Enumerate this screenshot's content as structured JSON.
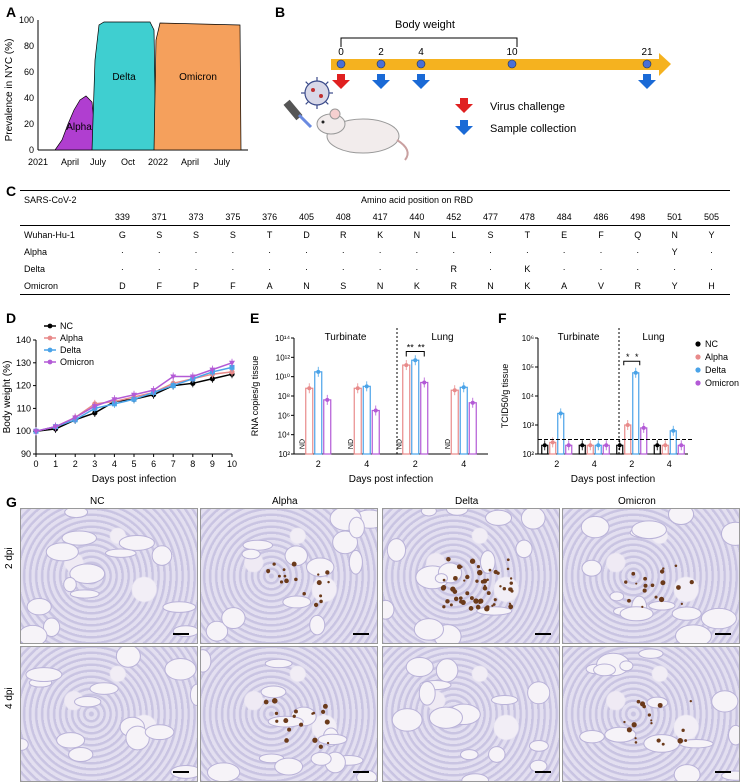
{
  "panel_labels": {
    "a": "A",
    "b": "B",
    "c": "C",
    "d": "D",
    "e": "E",
    "f": "F",
    "g": "G"
  },
  "colors": {
    "nc": "#000000",
    "alpha": "#e88a8a",
    "delta": "#4aa3e8",
    "omicron": "#b35ad6",
    "timeline": "#f5b21f",
    "alpha_area": "#b03ed0",
    "delta_area": "#3fcfd0",
    "omicron_area": "#f5a05c",
    "challenge": "#e02020",
    "sample": "#1a6ad6"
  },
  "panel_a": {
    "ylabel": "Prevalence in NYC (%)",
    "yticks": [
      "0",
      "20",
      "40",
      "60",
      "80",
      "100"
    ],
    "xticks": [
      "2021",
      "April",
      "July",
      "Oct",
      "2022",
      "April",
      "July"
    ],
    "areas": [
      "Alpha",
      "Delta",
      "Omicron"
    ]
  },
  "panel_b": {
    "title": "Body weight",
    "days": [
      "0",
      "2",
      "4",
      "10",
      "21"
    ],
    "legend": [
      "Virus challenge",
      "Sample collection"
    ]
  },
  "panel_c": {
    "header_left": "SARS-CoV-2",
    "header_title": "Amino acid position on RBD",
    "positions": [
      "339",
      "371",
      "373",
      "375",
      "376",
      "405",
      "408",
      "417",
      "440",
      "452",
      "477",
      "478",
      "484",
      "486",
      "498",
      "501",
      "505"
    ],
    "rows": [
      {
        "name": "Wuhan-Hu-1",
        "cells": [
          "G",
          "S",
          "S",
          "S",
          "T",
          "D",
          "R",
          "K",
          "N",
          "L",
          "S",
          "T",
          "E",
          "F",
          "Q",
          "N",
          "Y"
        ]
      },
      {
        "name": "Alpha",
        "cells": [
          "·",
          "·",
          "·",
          "·",
          "·",
          "·",
          "·",
          "·",
          "·",
          "·",
          "·",
          "·",
          "·",
          "·",
          "·",
          "Y",
          "·"
        ]
      },
      {
        "name": "Delta",
        "cells": [
          "·",
          "·",
          "·",
          "·",
          "·",
          "·",
          "·",
          "·",
          "·",
          "R",
          "·",
          "K",
          "·",
          "·",
          "·",
          "·",
          "·"
        ]
      },
      {
        "name": "Omicron",
        "cells": [
          "D",
          "F",
          "P",
          "F",
          "A",
          "N",
          "S",
          "N",
          "K",
          "R",
          "N",
          "K",
          "A",
          "V",
          "R",
          "Y",
          "H"
        ]
      }
    ]
  },
  "chart_data": [
    {
      "type": "line",
      "title": "",
      "xlabel": "Days post infection",
      "ylabel": "Body weight (%)",
      "x": [
        0,
        1,
        2,
        3,
        4,
        5,
        6,
        7,
        8,
        9,
        10
      ],
      "ylim": [
        90,
        140
      ],
      "yticks": [
        "90",
        "100",
        "110",
        "120",
        "130",
        "140"
      ],
      "xticks": [
        "0",
        "1",
        "2",
        "3",
        "4",
        "5",
        "6",
        "7",
        "8",
        "9",
        "10"
      ],
      "series": [
        {
          "name": "NC",
          "values": [
            100,
            101,
            105,
            108,
            113,
            114,
            116,
            120,
            121,
            123,
            125
          ]
        },
        {
          "name": "Alpha",
          "values": [
            100,
            102,
            106,
            112,
            113,
            115,
            117,
            121,
            123,
            125,
            126
          ]
        },
        {
          "name": "Delta",
          "values": [
            100,
            102,
            105,
            110,
            112,
            114,
            117,
            120,
            123,
            126,
            128
          ]
        },
        {
          "name": "Omicron",
          "values": [
            100,
            102,
            106,
            111,
            114,
            116,
            118,
            124,
            124,
            127,
            130
          ]
        }
      ]
    },
    {
      "type": "bar",
      "ylabel": "RNA copies/g tissue",
      "xlabel": "Days post infection",
      "groups": [
        "Turbinate",
        "Lung"
      ],
      "categories": [
        "2",
        "4",
        "2",
        "4"
      ],
      "ytick_labels": [
        "10²",
        "10⁴",
        "10⁶",
        "10⁸",
        "10¹⁰",
        "10¹²",
        "10¹⁴"
      ],
      "nd_label": "ND",
      "significance": [
        "**",
        "**"
      ],
      "series": [
        {
          "name": "Alpha",
          "log10_values": [
            8.8,
            8.8,
            11.2,
            8.6
          ]
        },
        {
          "name": "Delta",
          "log10_values": [
            10.5,
            9,
            11.7,
            8.9
          ]
        },
        {
          "name": "Omicron",
          "log10_values": [
            7.6,
            6.5,
            9.4,
            7.3
          ]
        }
      ]
    },
    {
      "type": "bar",
      "ylabel": "TCID50/g tissue",
      "xlabel": "Days post infection",
      "groups": [
        "Turbinate",
        "Lung"
      ],
      "categories": [
        "2",
        "4",
        "2",
        "4"
      ],
      "ytick_labels": [
        "10²",
        "10³",
        "10⁴",
        "10⁵",
        "10⁶"
      ],
      "significance": [
        "*",
        "*"
      ],
      "legend": [
        "NC",
        "Alpha",
        "Delta",
        "Omicron"
      ],
      "series": [
        {
          "name": "NC",
          "log10_values": [
            2.3,
            2.3,
            2.3,
            2.3
          ]
        },
        {
          "name": "Alpha",
          "log10_values": [
            2.4,
            2.3,
            3.0,
            2.3
          ]
        },
        {
          "name": "Delta",
          "log10_values": [
            3.4,
            2.3,
            4.8,
            2.8
          ]
        },
        {
          "name": "Omicron",
          "log10_values": [
            2.3,
            2.3,
            2.9,
            2.3
          ]
        }
      ]
    }
  ],
  "panel_g": {
    "columns": [
      "NC",
      "Alpha",
      "Delta",
      "Omicron"
    ],
    "rows": [
      "2 dpi",
      "4 dpi"
    ]
  }
}
